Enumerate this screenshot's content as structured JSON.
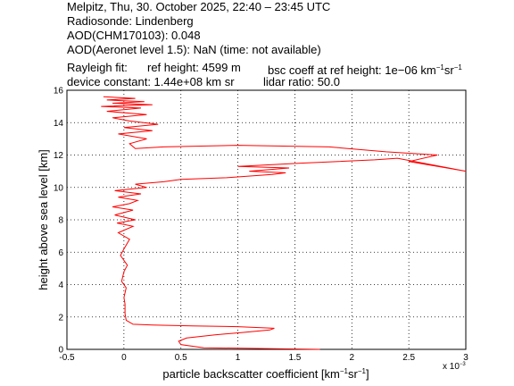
{
  "header": {
    "line1": "Melpitz, Thu, 30. October 2025, 22:40 – 23:45 UTC",
    "line2": "Radiosonde: Lindenberg",
    "line3": "AOD(CHM170103): 0.048",
    "line4": "AOD(Aeronet level 1.5): NaN   (time: not available)",
    "rayleigh_label": "Rayleigh fit:",
    "ref_height": "ref height: 4599 m",
    "bsc_coeff_prefix": "bsc coeff at ref height: 1e−06 km",
    "device_constant": "device constant: 1.44e+08 km sr",
    "lidar_ratio": "lidar ratio: 50.0"
  },
  "chart_data": {
    "type": "line",
    "xlabel": "particle backscatter coefficient [km⁻¹sr⁻¹]",
    "ylabel": "height above sea level [km]",
    "x_exponent_label": "x 10⁻³",
    "xlim": [
      -0.5,
      3.0
    ],
    "ylim": [
      0,
      16
    ],
    "xticks": [
      "-0.5",
      "0",
      "0.5",
      "1",
      "1.5",
      "2",
      "2.5",
      "3"
    ],
    "yticks": [
      "0",
      "2",
      "4",
      "6",
      "8",
      "10",
      "12",
      "14",
      "16"
    ],
    "grid": true,
    "line_color": "#ff0000",
    "x_scale_note": "values in 1e-3 km^-1 sr^-1",
    "series": [
      {
        "x": [
          1.72,
          0.7,
          0.5,
          0.48,
          0.55,
          0.8,
          1.05,
          1.28,
          1.32,
          1.0,
          0.6,
          0.25,
          0.08,
          0.02,
          0.01,
          0.01,
          0.0,
          0.02,
          -0.02,
          0.0,
          0.03,
          -0.03,
          0.0,
          0.05,
          -0.05,
          0.08,
          -0.06,
          0.1,
          -0.08,
          0.08,
          -0.1,
          0.05,
          0.12,
          -0.05,
          0.15,
          -0.08,
          0.2,
          0.1,
          0.35,
          0.5,
          0.9,
          1.3,
          1.42,
          1.1,
          1.45,
          1.0,
          1.55,
          2.2,
          2.4,
          3.0,
          2.5,
          2.75,
          2.3,
          1.8,
          1.0,
          0.35,
          0.1,
          0.05,
          0.2,
          -0.05,
          0.25,
          0.0,
          0.3,
          0.05,
          -0.1,
          0.2,
          -0.15,
          0.15,
          -0.2,
          0.25,
          -0.1,
          0.18,
          -0.15,
          0.1,
          -0.18
        ],
        "y": [
          0.0,
          0.1,
          0.3,
          0.5,
          0.7,
          0.9,
          1.05,
          1.2,
          1.3,
          1.4,
          1.45,
          1.5,
          1.55,
          1.8,
          2.2,
          2.8,
          3.2,
          3.8,
          4.2,
          4.8,
          5.2,
          5.8,
          6.2,
          6.8,
          7.2,
          7.6,
          7.8,
          8.0,
          8.3,
          8.6,
          8.8,
          9.0,
          9.2,
          9.4,
          9.6,
          9.8,
          10.0,
          10.2,
          10.35,
          10.5,
          10.6,
          10.8,
          10.9,
          11.0,
          11.2,
          11.3,
          11.5,
          11.7,
          11.8,
          11.0,
          11.6,
          12.0,
          12.2,
          12.5,
          12.6,
          12.5,
          12.4,
          12.7,
          13.0,
          13.3,
          13.5,
          13.7,
          13.9,
          14.1,
          14.3,
          14.5,
          14.7,
          14.9,
          15.0,
          15.1,
          15.2,
          15.3,
          15.4,
          15.5,
          15.6
        ]
      }
    ]
  }
}
